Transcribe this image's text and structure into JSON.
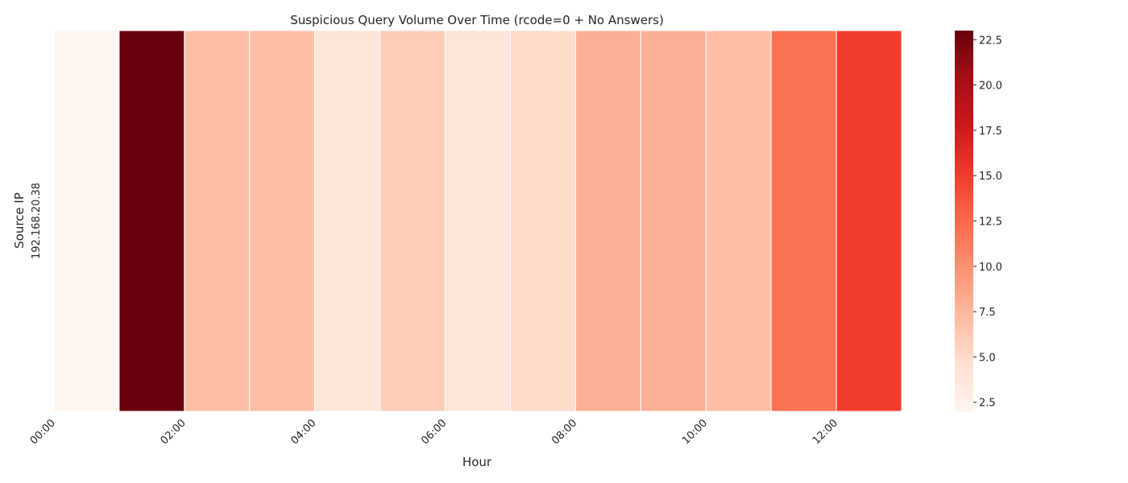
{
  "chart_data": {
    "type": "heatmap",
    "title": "Suspicious Query Volume Over Time (rcode=0 + No Answers)",
    "xlabel": "Hour",
    "ylabel": "Source IP",
    "rows": [
      "192.168.20.38"
    ],
    "x_tick_labels": [
      "00:00",
      "02:00",
      "04:00",
      "06:00",
      "08:00",
      "10:00",
      "12:00"
    ],
    "values": [
      [
        2,
        23,
        7,
        7,
        4,
        6,
        4,
        5,
        8,
        8,
        7,
        12,
        15
      ]
    ],
    "colormap": "Reds",
    "color_range": [
      2,
      23
    ],
    "colorbar_ticks": [
      "2.5",
      "5.0",
      "7.5",
      "10.0",
      "12.5",
      "15.0",
      "17.5",
      "20.0",
      "22.5"
    ]
  }
}
